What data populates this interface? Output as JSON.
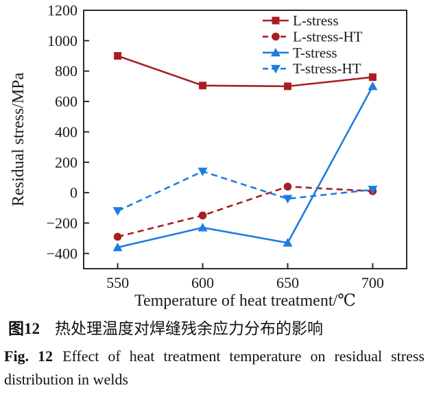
{
  "figure": {
    "caption_zh": {
      "label": "图12",
      "text": "热处理温度对焊缝残余应力分布的影响"
    },
    "caption_en": {
      "label": "Fig. 12",
      "text": "Effect of heat treatment temperature on residual stress distribution in welds"
    }
  },
  "chart_data": {
    "type": "line",
    "title": "",
    "xlabel": "Temperature of heat treatment/℃",
    "ylabel": "Residual stress/MPa",
    "x": [
      550,
      600,
      650,
      700
    ],
    "xlim": [
      530,
      720
    ],
    "ylim": [
      -500,
      1200
    ],
    "xticks": [
      550,
      600,
      650,
      700
    ],
    "xtick_labels": [
      "550",
      "600",
      "650",
      "700"
    ],
    "yticks": [
      -400,
      -200,
      0,
      200,
      400,
      600,
      800,
      1000,
      1200
    ],
    "ytick_labels": [
      "−400",
      "−200",
      "0",
      "200",
      "400",
      "600",
      "800",
      "1000",
      "1200"
    ],
    "grid": false,
    "legend_position": "top-right-inside",
    "frame_color": "#2a2a2a",
    "series": [
      {
        "name": "L-stress",
        "values": [
          900,
          705,
          700,
          760
        ],
        "color": "#a91e22",
        "line": "solid",
        "marker": "square"
      },
      {
        "name": "L-stress-HT",
        "values": [
          -290,
          -150,
          40,
          10
        ],
        "color": "#a91e22",
        "line": "dashed",
        "marker": "circle"
      },
      {
        "name": "T-stress",
        "values": [
          -360,
          -230,
          -330,
          700
        ],
        "color": "#1d7ce0",
        "line": "solid",
        "marker": "triangle-up"
      },
      {
        "name": "T-stress-HT",
        "values": [
          -120,
          140,
          -40,
          20
        ],
        "color": "#1d7ce0",
        "line": "dashed",
        "marker": "triangle-down"
      }
    ]
  }
}
